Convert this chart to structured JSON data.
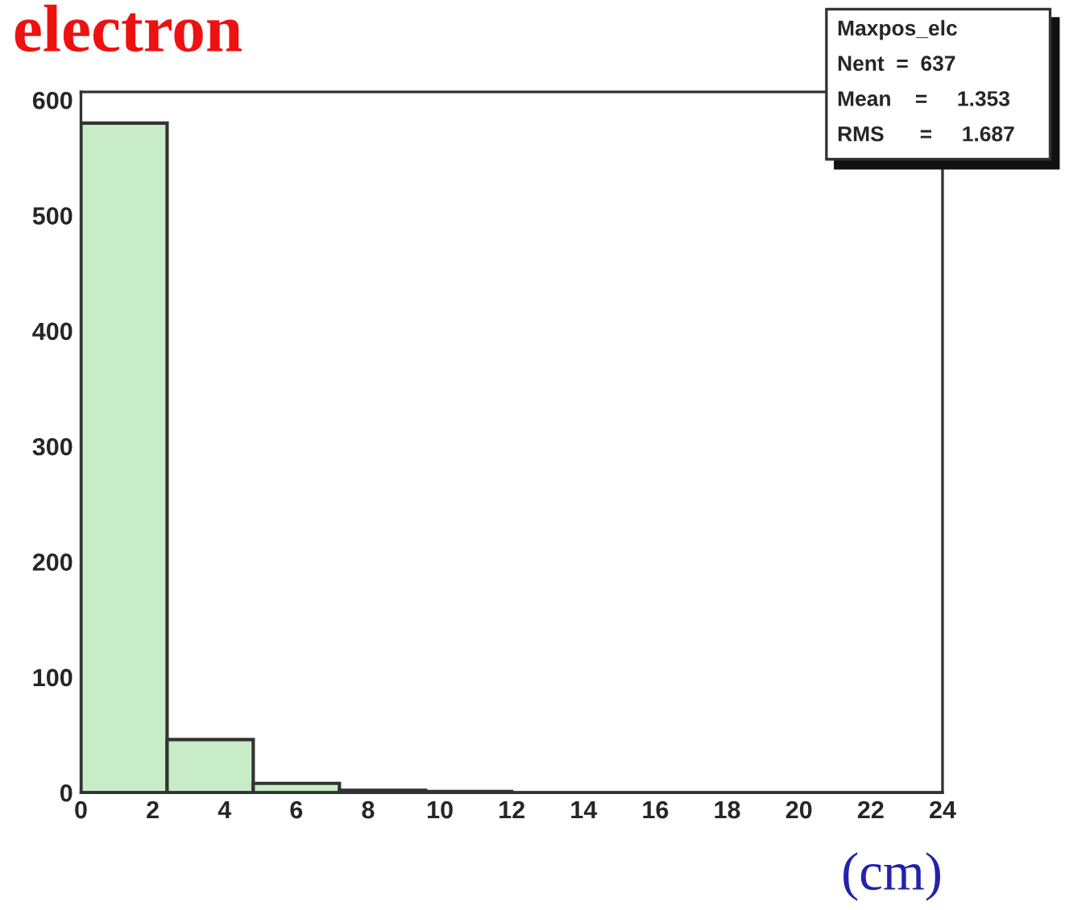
{
  "chart_data": {
    "type": "histogram",
    "title": "electron",
    "xlabel": "(cm)",
    "bins": [
      0,
      2.4,
      4.8,
      7.2,
      9.6,
      12,
      14.4,
      16.8,
      19.2,
      21.6,
      24
    ],
    "values": [
      580,
      46,
      8,
      2,
      1,
      0,
      0,
      0,
      0,
      0
    ],
    "color": "#c8ecc8",
    "xlim": [
      0,
      24
    ],
    "xticks": [
      0,
      2,
      4,
      6,
      8,
      10,
      12,
      14,
      16,
      18,
      20,
      22,
      24
    ],
    "ylim": [
      0,
      607
    ],
    "yticks": [
      0,
      100,
      200,
      300,
      400,
      500,
      600
    ],
    "annotations": [
      "Maxpos_elc",
      "Nent  =  637",
      "Mean    =     1.353",
      "RMS      =     1.687"
    ],
    "grid": false,
    "legend": false
  }
}
